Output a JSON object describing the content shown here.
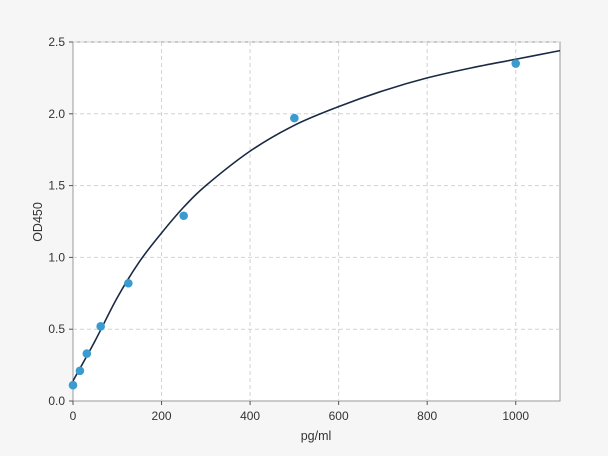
{
  "chart_data": {
    "type": "scatter",
    "title": "",
    "xlabel": "pg/ml",
    "ylabel": "OD450",
    "xlim": [
      0,
      1100
    ],
    "ylim": [
      0,
      2.5
    ],
    "xticks": [
      0,
      200,
      400,
      600,
      800,
      1000
    ],
    "xtick_labels": [
      "0",
      "200",
      "400",
      "600",
      "800",
      "1000"
    ],
    "yticks": [
      0,
      0.5,
      1.0,
      1.5,
      2.0,
      2.5
    ],
    "ytick_labels": [
      "0.0",
      "0.5",
      "1.0",
      "1.5",
      "2.0",
      "2.5"
    ],
    "grid": true,
    "legend": "none",
    "series": [
      {
        "values": [
          {
            "x": 0,
            "y": 0.11
          },
          {
            "x": 15.6,
            "y": 0.21
          },
          {
            "x": 31.2,
            "y": 0.33
          },
          {
            "x": 62.5,
            "y": 0.52
          },
          {
            "x": 125,
            "y": 0.82
          },
          {
            "x": 250,
            "y": 1.29
          },
          {
            "x": 500,
            "y": 1.97
          },
          {
            "x": 1000,
            "y": 2.35
          }
        ],
        "color": "#3a9bd0"
      }
    ],
    "fit_curve": {
      "color": "#1a2a44",
      "points": [
        {
          "x": 0,
          "y": 0.14
        },
        {
          "x": 50,
          "y": 0.42
        },
        {
          "x": 100,
          "y": 0.72
        },
        {
          "x": 150,
          "y": 0.97
        },
        {
          "x": 200,
          "y": 1.17
        },
        {
          "x": 250,
          "y": 1.35
        },
        {
          "x": 300,
          "y": 1.5
        },
        {
          "x": 400,
          "y": 1.74
        },
        {
          "x": 500,
          "y": 1.92
        },
        {
          "x": 600,
          "y": 2.05
        },
        {
          "x": 700,
          "y": 2.16
        },
        {
          "x": 800,
          "y": 2.25
        },
        {
          "x": 900,
          "y": 2.32
        },
        {
          "x": 1000,
          "y": 2.38
        },
        {
          "x": 1100,
          "y": 2.44
        }
      ]
    }
  }
}
